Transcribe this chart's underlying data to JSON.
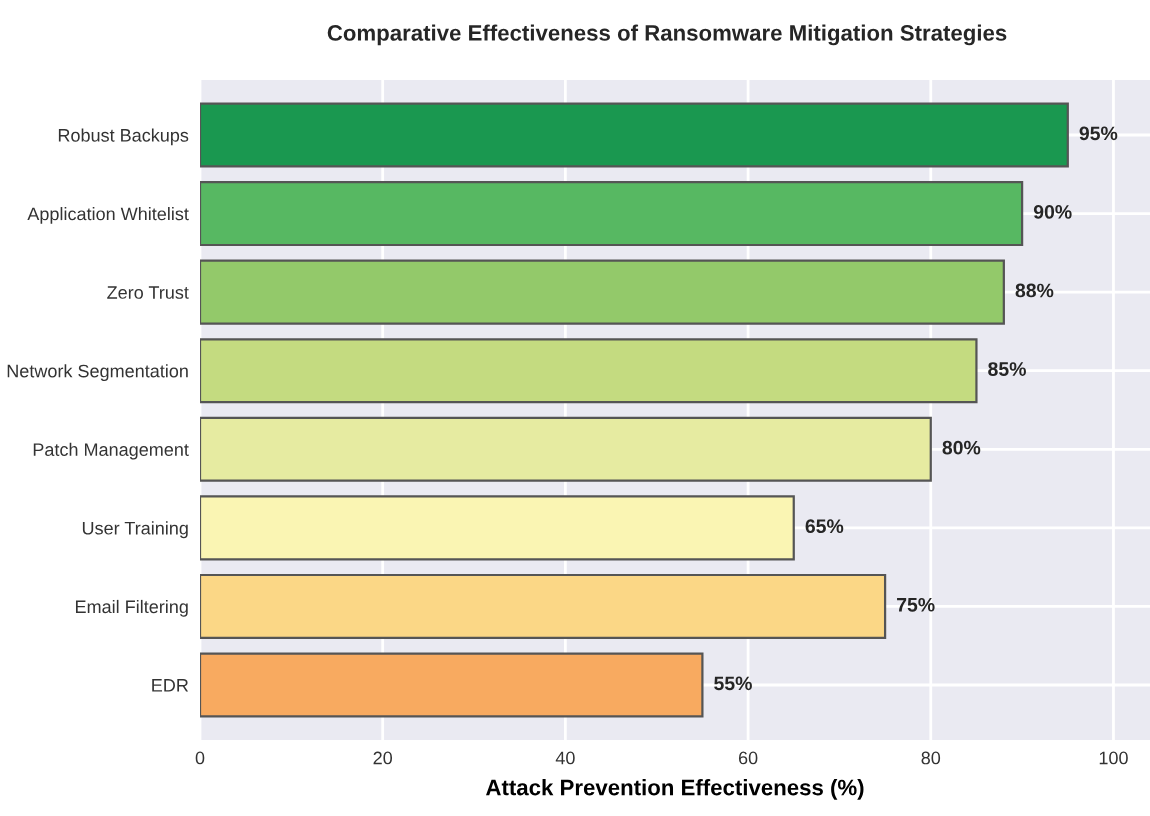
{
  "chart_data": {
    "type": "bar",
    "orientation": "horizontal",
    "title": "Comparative Effectiveness of Ransomware Mitigation Strategies",
    "xlabel": "Attack Prevention Effectiveness (%)",
    "categories": [
      "Robust Backups",
      "Application Whitelist",
      "Zero Trust",
      "Network Segmentation",
      "Patch Management",
      "User Training",
      "Email Filtering",
      "EDR"
    ],
    "values": [
      95,
      90,
      88,
      85,
      80,
      65,
      75,
      55
    ],
    "value_labels": [
      "95%",
      "90%",
      "88%",
      "85%",
      "80%",
      "65%",
      "75%",
      "55%"
    ],
    "colors": [
      "#1a9850",
      "#57b862",
      "#93c96a",
      "#c4db80",
      "#e6eba1",
      "#faf5b3",
      "#fbd786",
      "#f8aa60"
    ],
    "xlim": [
      0,
      104
    ],
    "xticks": [
      0,
      20,
      40,
      60,
      80,
      100
    ],
    "grid": true
  }
}
